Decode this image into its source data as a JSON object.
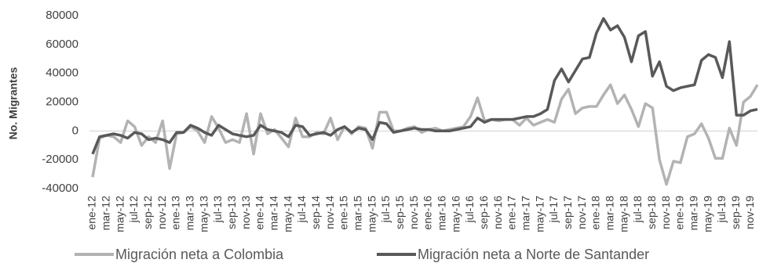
{
  "chart_data": {
    "type": "line",
    "y_label": "No. Migrantes",
    "categories": [
      "ene-12",
      null,
      "mar-12",
      null,
      "may-12",
      null,
      "jul-12",
      null,
      "sep-12",
      null,
      "nov-12",
      null,
      "ene-13",
      null,
      "mar-13",
      null,
      "may-13",
      null,
      "jul-13",
      null,
      "sep-13",
      null,
      "nov-13",
      null,
      "ene-14",
      null,
      "mar-14",
      null,
      "may-14",
      null,
      "jul-14",
      null,
      "sep-14",
      null,
      "nov-14",
      null,
      "ene-15",
      null,
      "mar-15",
      null,
      "may-15",
      null,
      "jul-15",
      null,
      "sep-15",
      null,
      "nov-15",
      null,
      "ene-16",
      null,
      "mar-16",
      null,
      "may-16",
      null,
      "jul-16",
      null,
      "sep-16",
      null,
      "nov-16",
      null,
      "ene-17",
      null,
      "mar-17",
      null,
      "may-17",
      null,
      "jul-17",
      null,
      "sep-17",
      null,
      "nov-17",
      null,
      "ene-18",
      null,
      "mar-18",
      null,
      "may-18",
      null,
      "jul-18",
      null,
      "sep-18",
      null,
      "nov-18",
      null,
      "ene-19",
      null,
      "mar-19",
      null,
      "may-19",
      null,
      "jul-19",
      null,
      "sep-19",
      null,
      "nov-19",
      null
    ],
    "series": [
      {
        "name": "Migración neta a Colombia",
        "color": "#b3b3b3",
        "values": [
          -32000,
          -5000,
          -3000,
          -4000,
          -8000,
          7000,
          3000,
          -10000,
          -4000,
          -8000,
          7000,
          -26000,
          -2000,
          -1000,
          3000,
          0,
          -8000,
          10000,
          2000,
          -8000,
          -6000,
          -8000,
          12000,
          -16000,
          12000,
          -2000,
          1000,
          -5000,
          -11000,
          9000,
          -4000,
          -4000,
          -1000,
          -2000,
          9000,
          -6000,
          3000,
          -2000,
          3000,
          2000,
          -12000,
          13000,
          13000,
          0,
          0,
          2000,
          3000,
          -1000,
          1000,
          2000,
          0,
          1000,
          2000,
          3000,
          10000,
          23000,
          7000,
          8000,
          7000,
          8000,
          8000,
          4000,
          9000,
          4000,
          6000,
          8000,
          6000,
          22000,
          29000,
          12000,
          16000,
          17000,
          17000,
          25000,
          32000,
          19000,
          25000,
          15000,
          3000,
          19000,
          16000,
          -20000,
          -37000,
          -21000,
          -22000,
          -4000,
          -2000,
          5000,
          -5000,
          -19000,
          -19000,
          2000,
          -10000,
          20000,
          24000,
          32000
        ]
      },
      {
        "name": "Migración neta a Norte de Santander",
        "color": "#595959",
        "values": [
          -16000,
          -4000,
          -3000,
          -2000,
          -3000,
          -5000,
          -1000,
          -2000,
          -6000,
          -5000,
          -6000,
          -8000,
          -1000,
          -1000,
          4000,
          2000,
          -1000,
          -3000,
          4000,
          1000,
          -2000,
          -3000,
          -4000,
          -3000,
          4000,
          1000,
          0,
          -1000,
          -4000,
          4000,
          3000,
          -3000,
          -2000,
          -1000,
          -3000,
          1000,
          3000,
          -1000,
          2000,
          1000,
          -6000,
          6000,
          5000,
          -1000,
          0,
          1000,
          2000,
          1000,
          1000,
          0,
          0,
          0,
          1000,
          2000,
          3000,
          9000,
          6000,
          8000,
          8000,
          8000,
          8000,
          9000,
          10000,
          10000,
          12000,
          15000,
          35000,
          43000,
          34000,
          42000,
          50000,
          51000,
          68000,
          78000,
          70000,
          73000,
          65000,
          48000,
          66000,
          69000,
          38000,
          48000,
          31000,
          28000,
          30000,
          31000,
          32000,
          49000,
          53000,
          51000,
          37000,
          62000,
          11000,
          11000,
          14000,
          15000
        ]
      }
    ],
    "ylim": [
      -40000,
      80000
    ],
    "yticks": [
      -40000,
      -20000,
      0,
      20000,
      40000,
      60000,
      80000
    ]
  }
}
